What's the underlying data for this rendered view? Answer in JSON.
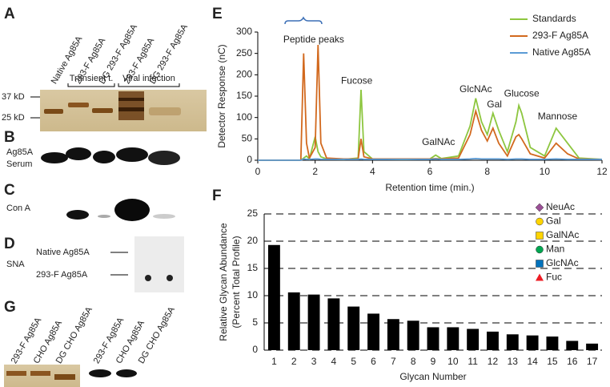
{
  "panels": {
    "A": {
      "label": "A",
      "lanes": [
        "Native Ag85A",
        "293-F Ag85A",
        "DG 293-F Ag85A",
        "293-F Ag85A",
        "DG 293-F Ag85A"
      ],
      "groups": [
        "Transient t.",
        "Viral infection"
      ],
      "markers": [
        "37 kD",
        "25 kD"
      ]
    },
    "B": {
      "label": "B",
      "stain": [
        "Ag85A",
        "Serum"
      ]
    },
    "C": {
      "label": "C",
      "stain": "Con A"
    },
    "D": {
      "label": "D",
      "stain": "SNA",
      "rows": [
        "Native Ag85A",
        "293-F Ag85A"
      ]
    },
    "G": {
      "label": "G",
      "lanes": [
        "293-F Ag85A",
        "CHO Ag85A",
        "DG CHO Ag85A",
        "293-F Ag85A",
        "CHO Ag85A",
        "DG CHO Ag85A"
      ]
    }
  },
  "chart_data": [
    {
      "type": "line",
      "label": "E",
      "xlabel": "Retention time (min.)",
      "ylabel": "Detector Response (nC)",
      "x": [
        0,
        1,
        1.5,
        1.6,
        1.7,
        1.8,
        2.0,
        2.1,
        2.2,
        2.4,
        3.0,
        3.5,
        3.6,
        3.7,
        4.0,
        5.0,
        6.0,
        6.2,
        6.4,
        7.0,
        7.4,
        7.6,
        7.8,
        8.0,
        8.2,
        8.4,
        8.7,
        9.0,
        9.1,
        9.2,
        9.5,
        10.0,
        10.4,
        10.8,
        11.2,
        12
      ],
      "series": [
        {
          "name": "Standards",
          "color": "#8dc63f",
          "values": [
            0,
            0,
            0,
            5,
            10,
            3,
            55,
            20,
            8,
            3,
            2,
            5,
            165,
            20,
            3,
            2,
            3,
            12,
            4,
            10,
            80,
            145,
            90,
            60,
            110,
            70,
            20,
            90,
            128,
            110,
            30,
            10,
            75,
            40,
            5,
            2
          ]
        },
        {
          "name": "293-F Ag85A",
          "color": "#d2691e",
          "values": [
            0,
            0,
            0,
            250,
            40,
            5,
            30,
            270,
            40,
            5,
            3,
            3,
            50,
            8,
            3,
            3,
            3,
            4,
            3,
            5,
            60,
            115,
            70,
            45,
            75,
            40,
            10,
            55,
            60,
            50,
            15,
            5,
            40,
            15,
            3,
            2
          ]
        },
        {
          "name": "Native Ag85A",
          "color": "#5b9bd5",
          "values": [
            0,
            0,
            0,
            3,
            2,
            2,
            3,
            3,
            2,
            2,
            2,
            2,
            3,
            2,
            2,
            2,
            2,
            3,
            2,
            2,
            3,
            4,
            3,
            3,
            3,
            3,
            2,
            3,
            3,
            3,
            2,
            2,
            3,
            2,
            2,
            2
          ]
        }
      ],
      "xlim": [
        0,
        12
      ],
      "xticks": [
        0,
        2,
        4,
        6,
        8,
        10,
        12
      ],
      "ylim": [
        0,
        300
      ],
      "yticks": [
        0,
        50,
        100,
        150,
        200,
        250,
        300
      ],
      "annotations": [
        "Peptide peaks",
        "Fucose",
        "GalNAc",
        "GlcNAc",
        "Gal",
        "Glucose",
        "Mannose"
      ],
      "legend": "upper right"
    },
    {
      "type": "bar",
      "label": "F",
      "xlabel": "Glycan Number",
      "ylabel": [
        "Relative Glycan Abundance",
        "(Percent Total Profile)"
      ],
      "categories": [
        "1",
        "2",
        "3",
        "4",
        "5",
        "6",
        "7",
        "8",
        "9",
        "10",
        "11",
        "12",
        "13",
        "14",
        "15",
        "16",
        "17"
      ],
      "values": [
        19.3,
        10.6,
        10.2,
        9.5,
        8.0,
        6.7,
        5.7,
        5.4,
        4.2,
        4.2,
        3.9,
        3.4,
        2.9,
        2.7,
        2.5,
        1.7,
        1.2
      ],
      "color": "#000000",
      "ylim": [
        0,
        25
      ],
      "yticks": [
        0,
        5,
        10,
        15,
        20,
        25
      ],
      "grid": "dashed",
      "legend": [
        {
          "name": "NeuAc",
          "color": "#9b4f96",
          "shape": "diamond"
        },
        {
          "name": "Gal",
          "color": "#ffd400",
          "shape": "circle"
        },
        {
          "name": "GalNAc",
          "color": "#ffd400",
          "shape": "square"
        },
        {
          "name": "Man",
          "color": "#00a651",
          "shape": "circle"
        },
        {
          "name": "GlcNAc",
          "color": "#0072bc",
          "shape": "square"
        },
        {
          "name": "Fuc",
          "color": "#ed1c24",
          "shape": "triangle"
        }
      ]
    }
  ]
}
